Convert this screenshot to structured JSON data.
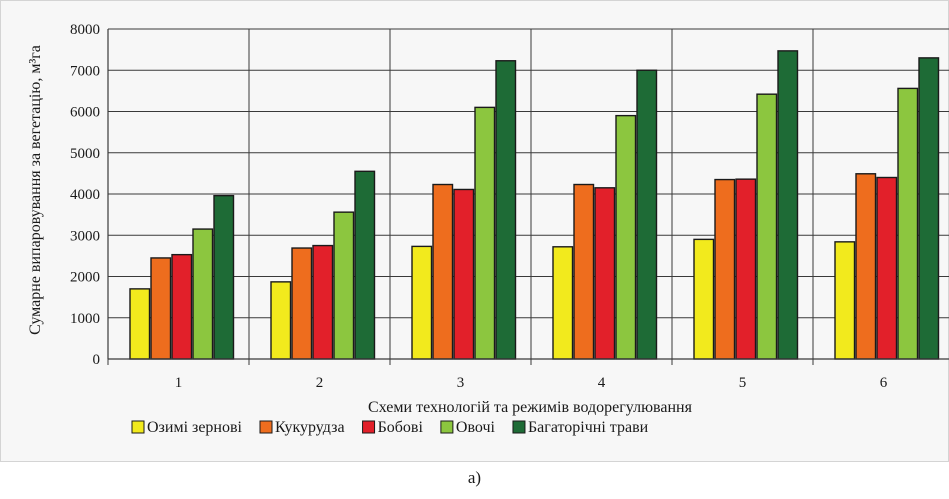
{
  "chart_data": {
    "type": "bar",
    "title": "",
    "xlabel": "Схеми технологій та режимів водорегулювання",
    "ylabel": "Сумарне випаровування за вегетацію, м³га",
    "ylim": [
      0,
      8000
    ],
    "yticks": [
      0,
      1000,
      2000,
      3000,
      4000,
      5000,
      6000,
      7000,
      8000
    ],
    "grid": true,
    "legend_position": "bottom",
    "categories": [
      "1",
      "2",
      "3",
      "4",
      "5",
      "6"
    ],
    "series": [
      {
        "name": "Озимі зернові",
        "color": "#f2ea1d",
        "values": [
          1700,
          1870,
          2730,
          2720,
          2900,
          2840
        ]
      },
      {
        "name": "Кукурудза",
        "color": "#ee6d1e",
        "values": [
          2450,
          2690,
          4230,
          4230,
          4350,
          4490
        ]
      },
      {
        "name": "Бобові",
        "color": "#e2202a",
        "values": [
          2530,
          2750,
          4110,
          4150,
          4360,
          4400
        ]
      },
      {
        "name": "Овочі",
        "color": "#8cc63f",
        "values": [
          3150,
          3560,
          6100,
          5900,
          6420,
          6560
        ]
      },
      {
        "name": "Багаторічні трави",
        "color": "#1e6b36",
        "values": [
          3960,
          4550,
          7230,
          7000,
          7470,
          7300
        ]
      }
    ]
  },
  "caption": "а)"
}
